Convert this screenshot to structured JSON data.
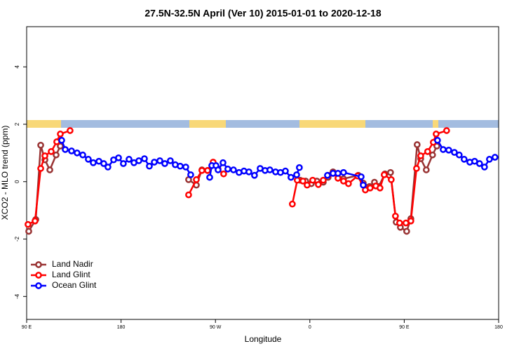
{
  "chart_data": {
    "type": "line",
    "title": "27.5N-32.5N April (Ver 10)   2015-01-01 to 2020-12-18",
    "x_label": "Longitude",
    "y_label": "XCO2 - MLO trend (ppm)",
    "xlim": [
      90,
      540
    ],
    "xticks": [
      {
        "value": 90,
        "label": "90 E"
      },
      180,
      {
        "value": 270,
        "label": "90 W"
      },
      {
        "value": 360,
        "label": "0"
      },
      {
        "value": 450,
        "label": "90 E"
      },
      {
        "value": 540,
        "label": "180"
      }
    ],
    "ylim": [
      -4.8,
      5.4
    ],
    "yticks": [
      -4,
      -2,
      0,
      2,
      4
    ],
    "legend": "bottomleft",
    "series": [
      {
        "name": "Land Nadir",
        "color": "#993333",
        "x": [
          92.0,
          98.7,
          103.4,
          107.4,
          112.1,
          118.1,
          122.1,
          null,
          244.4,
          251.8,
          257.1,
          262.5,
          null,
          350.7,
          356.0,
          361.4,
          366.7,
          372.8,
          377.4,
          382.1,
          392.1,
          406.2,
          410.9,
          416.9,
          421.6,
          425.6,
          431.6,
          436.9,
          442.3,
          446.3,
          452.3,
          456.3,
          462.3,
          465.7,
          471.0,
          477.0,
          481.1
        ],
        "values": [
          -1.73,
          -1.32,
          1.27,
          0.76,
          0.41,
          0.93,
          1.24,
          null,
          0.07,
          -0.12,
          0.41,
          0.39,
          null,
          0.05,
          0.02,
          -0.07,
          0.02,
          -0.02,
          0.15,
          0.34,
          0.1,
          0.22,
          -0.05,
          -0.17,
          -0.02,
          -0.17,
          0.27,
          0.32,
          -1.41,
          -1.59,
          -1.73,
          -1.29,
          1.29,
          0.8,
          0.41,
          0.93,
          1.24
        ]
      },
      {
        "name": "Land Glint",
        "color": "#ff0000",
        "x": [
          91.3,
          98.0,
          103.4,
          107.4,
          113.4,
          118.7,
          122.1,
          131.4,
          null,
          244.4,
          251.8,
          257.1,
          262.5,
          267.8,
          272.5,
          277.8,
          null,
          343.3,
          348.0,
          353.4,
          357.4,
          362.7,
          368.1,
          372.8,
          377.4,
          382.1,
          386.8,
          392.1,
          396.8,
          405.5,
          412.9,
          417.5,
          422.9,
          426.9,
          430.9,
          437.6,
          441.6,
          445.6,
          451.6,
          456.3,
          461.7,
          465.7,
          472.3,
          477.7,
          480.4,
          490.4
        ],
        "values": [
          -1.49,
          -1.37,
          0.46,
          0.9,
          1.05,
          1.39,
          1.66,
          1.78,
          null,
          -0.46,
          0.07,
          0.39,
          0.39,
          0.68,
          0.44,
          0.27,
          null,
          -0.78,
          0.05,
          0.02,
          -0.12,
          0.05,
          -0.1,
          0.05,
          0.22,
          0.29,
          0.12,
          0.02,
          -0.07,
          0.2,
          -0.29,
          -0.22,
          -0.15,
          -0.22,
          0.24,
          0.07,
          -1.2,
          -1.44,
          -1.44,
          -1.37,
          0.46,
          0.9,
          1.05,
          1.37,
          1.66,
          1.78
        ]
      },
      {
        "name": "Ocean Glint",
        "color": "#0000ff",
        "x": [
          123.4,
          126.8,
          132.8,
          138.1,
          143.5,
          148.8,
          153.5,
          158.9,
          163.5,
          167.5,
          172.9,
          177.6,
          182.2,
          187.6,
          192.3,
          197.0,
          202.3,
          207.0,
          211.7,
          217.0,
          221.7,
          227.0,
          231.7,
          236.4,
          241.7,
          246.4,
          null,
          264.5,
          266.5,
          270.5,
          272.5,
          277.2,
          281.8,
          287.2,
          292.5,
          297.2,
          301.9,
          307.2,
          312.6,
          317.3,
          321.9,
          327.3,
          332.0,
          336.7,
          342.0,
          347.4,
          350.0,
          null,
          376.8,
          382.1,
          386.8,
          392.1,
          408.9,
          410.9,
          null,
          481.7,
          487.1,
          492.4,
          497.8,
          502.4,
          507.1,
          512.5,
          517.1,
          521.8,
          526.5,
          531.2,
          536.5
        ],
        "values": [
          1.44,
          1.12,
          1.07,
          1.0,
          0.93,
          0.78,
          0.66,
          0.71,
          0.63,
          0.51,
          0.76,
          0.83,
          0.63,
          0.78,
          0.66,
          0.73,
          0.8,
          0.54,
          0.68,
          0.73,
          0.63,
          0.73,
          0.59,
          0.54,
          0.51,
          0.24,
          null,
          0.15,
          0.56,
          0.56,
          0.41,
          0.66,
          0.44,
          0.41,
          0.32,
          0.37,
          0.34,
          0.22,
          0.46,
          0.39,
          0.41,
          0.34,
          0.32,
          0.37,
          0.15,
          0.24,
          0.49,
          null,
          0.22,
          0.29,
          0.29,
          0.32,
          0.17,
          -0.12,
          null,
          1.44,
          1.12,
          1.1,
          1.02,
          0.93,
          0.78,
          0.68,
          0.71,
          0.63,
          0.51,
          0.78,
          0.85
        ]
      }
    ]
  }
}
